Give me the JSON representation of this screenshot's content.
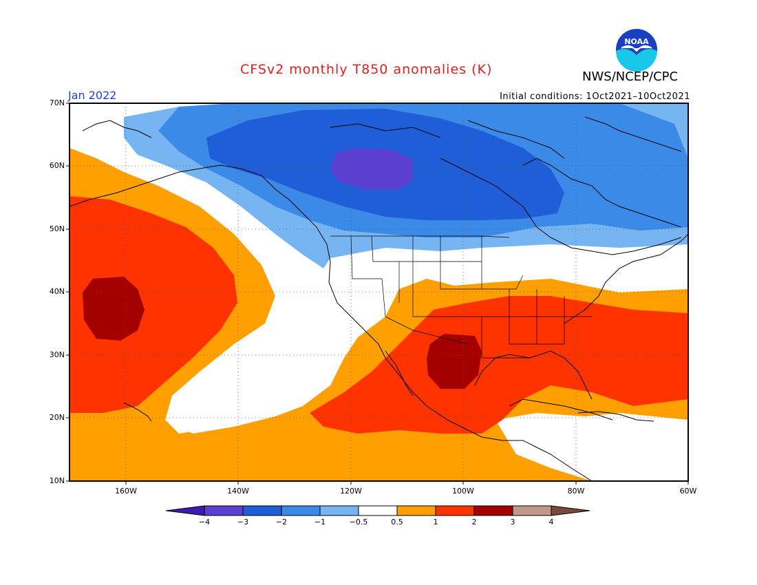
{
  "title": "CFSv2 monthly T850 anomalies (K)",
  "agency": "NWS/NCEP/CPC",
  "logo_text": "NOAA",
  "valid_month": "Jan 2022",
  "initial_conditions": "Initial conditions: 1Oct2021–10Oct2021",
  "lat_labels": [
    "70N",
    "60N",
    "50N",
    "40N",
    "30N",
    "20N",
    "10N"
  ],
  "lon_labels": [
    "160W",
    "140W",
    "120W",
    "100W",
    "80W",
    "60W"
  ],
  "colorbar": {
    "labels": [
      "−4",
      "−3",
      "−2",
      "−1",
      "−0.5",
      "0.5",
      "1",
      "2",
      "3",
      "4"
    ],
    "colors": [
      "#3d1ab0",
      "#5a3fd0",
      "#1f5ed6",
      "#3b8ae8",
      "#76b4f2",
      "#ffffff",
      "#ffa000",
      "#ff3300",
      "#a50000",
      "#c0998a",
      "#7a4a3a"
    ]
  },
  "colors": {
    "title": "#e0201e",
    "month": "#1f3fe0"
  }
}
